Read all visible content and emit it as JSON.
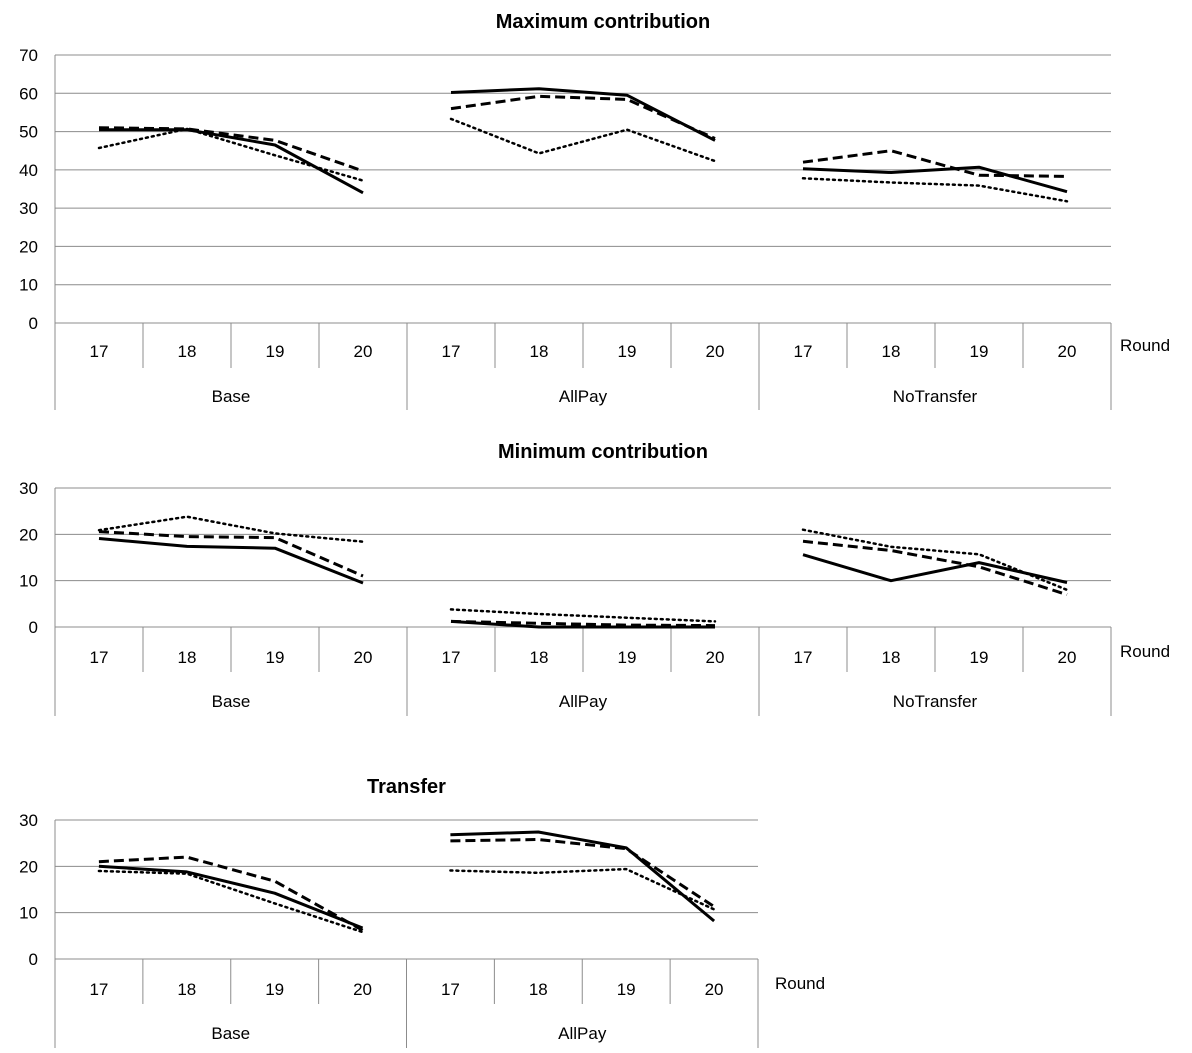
{
  "styles": {
    "solid": "#000000",
    "dashed": "#000000",
    "dotted": "#000000",
    "gridColor": "#8c8c8c"
  },
  "chart_data": [
    {
      "type": "line",
      "title": "Maximum contribution",
      "xlabel": "Round",
      "ylabel": "",
      "ylim": [
        0,
        70
      ],
      "yticks": [
        0,
        10,
        20,
        30,
        40,
        50,
        60,
        70
      ],
      "groups": [
        "Base",
        "AllPay",
        "NoTransfer"
      ],
      "rounds": [
        "17",
        "18",
        "19",
        "20"
      ],
      "grid": true,
      "series": [
        {
          "style": "solid",
          "values": [
            [
              50.5,
              50.5,
              46.5,
              34
            ],
            [
              60.2,
              61.2,
              59.5,
              47.7
            ],
            [
              40.3,
              39.3,
              40.7,
              34.3
            ]
          ]
        },
        {
          "style": "dashed",
          "values": [
            [
              51,
              50.7,
              47.7,
              39.7
            ],
            [
              56,
              59.2,
              58.4,
              48.2
            ],
            [
              42,
              45,
              38.6,
              38.3
            ]
          ]
        },
        {
          "style": "dotted",
          "values": [
            [
              45.7,
              50.7,
              43.8,
              37.2
            ],
            [
              53.3,
              44.3,
              50.5,
              42.3
            ],
            [
              37.8,
              36.7,
              35.9,
              31.8
            ]
          ]
        }
      ]
    },
    {
      "type": "line",
      "title": "Minimum contribution",
      "xlabel": "Round",
      "ylabel": "",
      "ylim": [
        0,
        30
      ],
      "yticks": [
        0,
        10,
        20,
        30
      ],
      "groups": [
        "Base",
        "AllPay",
        "NoTransfer"
      ],
      "rounds": [
        "17",
        "18",
        "19",
        "20"
      ],
      "grid": true,
      "series": [
        {
          "style": "solid",
          "values": [
            [
              19.1,
              17.4,
              17,
              9.5
            ],
            [
              1.2,
              0,
              0,
              0
            ],
            [
              15.6,
              10,
              13.9,
              9.6
            ]
          ]
        },
        {
          "style": "dashed",
          "values": [
            [
              20.6,
              19.5,
              19.3,
              11
            ],
            [
              1.2,
              0.8,
              0.4,
              0.3
            ],
            [
              18.5,
              16.5,
              13,
              7
            ]
          ]
        },
        {
          "style": "dotted",
          "values": [
            [
              20.9,
              23.8,
              20.2,
              18.4
            ],
            [
              3.8,
              2.8,
              2,
              1.2
            ],
            [
              21,
              17.3,
              15.7,
              8
            ]
          ]
        }
      ]
    },
    {
      "type": "line",
      "title": "Transfer",
      "xlabel": "Round",
      "ylabel": "",
      "ylim": [
        0,
        30
      ],
      "yticks": [
        0,
        10,
        20,
        30
      ],
      "groups": [
        "Base",
        "AllPay"
      ],
      "rounds": [
        "17",
        "18",
        "19",
        "20"
      ],
      "grid": true,
      "series": [
        {
          "style": "solid",
          "values": [
            [
              20,
              18.8,
              14.2,
              6.7
            ],
            [
              26.8,
              27.4,
              24,
              8.2
            ]
          ]
        },
        {
          "style": "dashed",
          "values": [
            [
              21,
              22,
              16.8,
              6.2
            ],
            [
              25.5,
              25.8,
              23.8,
              11.3
            ]
          ]
        },
        {
          "style": "dotted",
          "values": [
            [
              19,
              18.4,
              12,
              5.8
            ],
            [
              19.1,
              18.6,
              19.4,
              10.7
            ]
          ]
        }
      ]
    }
  ]
}
